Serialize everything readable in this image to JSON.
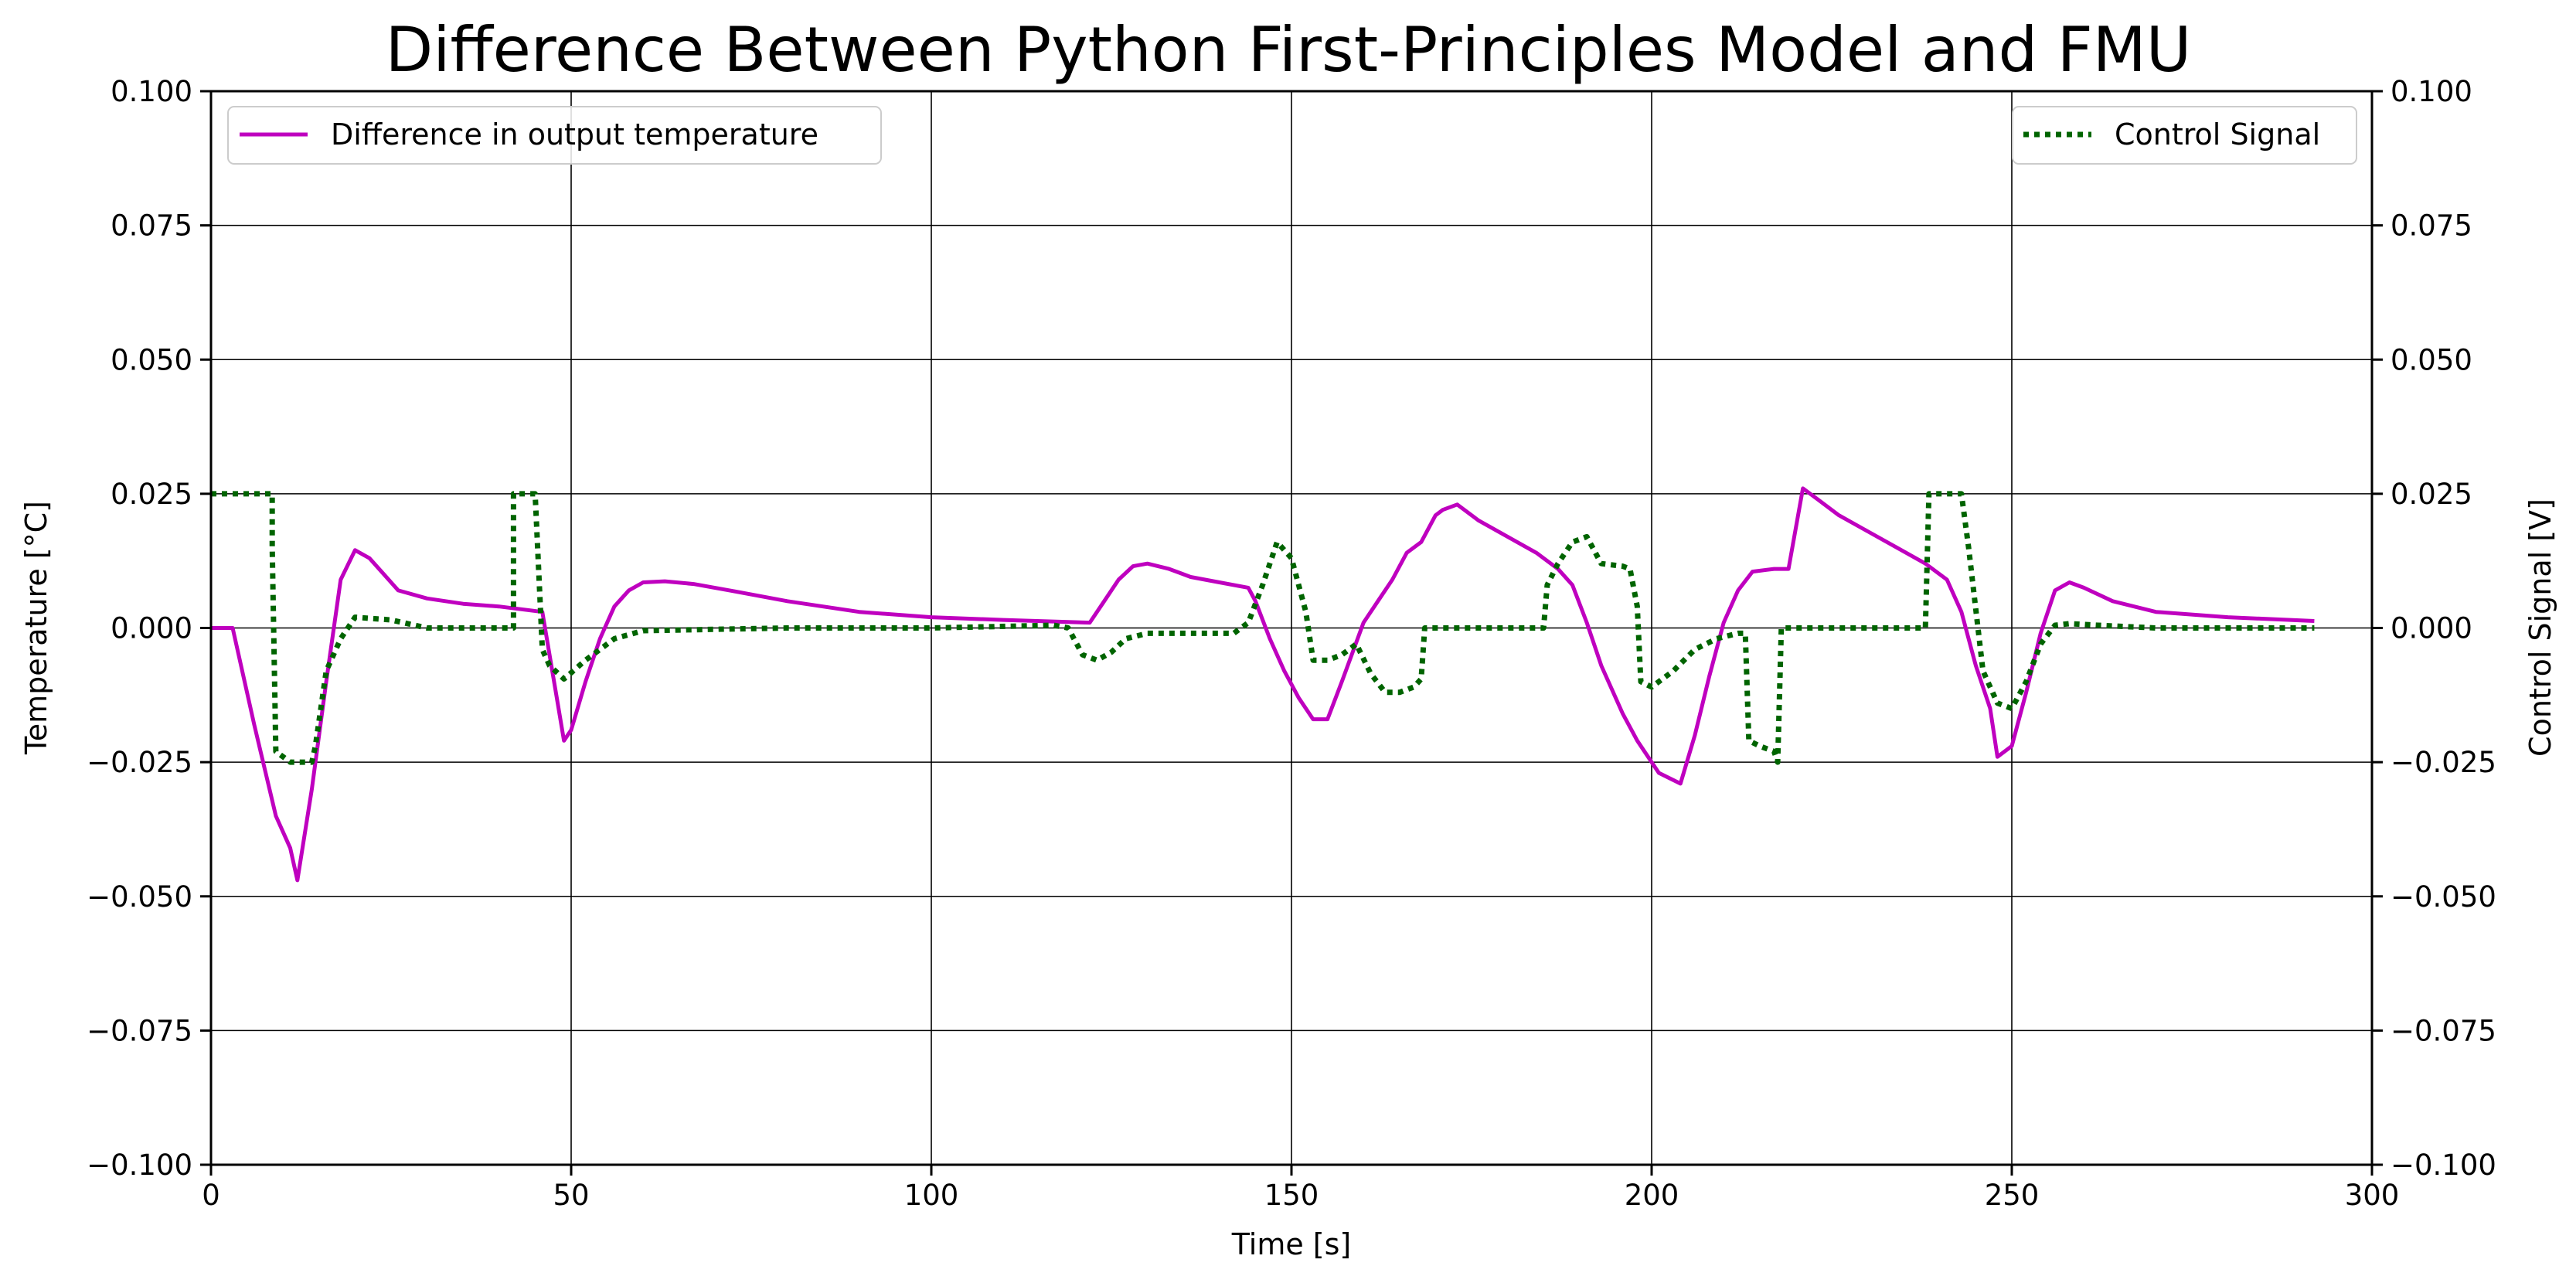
{
  "chart_data": {
    "type": "line",
    "title": "Difference Between Python First-Principles Model and FMU",
    "xlabel": "Time [s]",
    "ylabel_left": "Temperature [°C]",
    "ylabel_right": "Control Signal [V]",
    "xlim": [
      0,
      300
    ],
    "ylim_left": [
      -0.1,
      0.1
    ],
    "ylim_right": [
      -0.1,
      0.1
    ],
    "x_ticks": [
      0,
      50,
      100,
      150,
      200,
      250,
      300
    ],
    "x_tick_labels": [
      "0",
      "50",
      "100",
      "150",
      "200",
      "250",
      "300"
    ],
    "y_ticks": [
      -0.1,
      -0.075,
      -0.05,
      -0.025,
      0,
      0.025,
      0.05,
      0.075,
      0.1
    ],
    "y_tick_labels_left": [
      "−0.100",
      "−0.075",
      "−0.050",
      "−0.025",
      "0.000",
      "0.025",
      "0.050",
      "0.075",
      "0.100"
    ],
    "y_tick_labels_right": [
      "−0.100",
      "−0.075",
      "−0.050",
      "−0.025",
      "0.000",
      "0.025",
      "0.050",
      "0.075",
      "0.100"
    ],
    "grid": true,
    "legend_left": {
      "placement": "top-left",
      "label": "Difference in output temperature"
    },
    "legend_right": {
      "placement": "top-right",
      "label": "Control Signal"
    },
    "series": [
      {
        "name": "Difference in output temperature",
        "axis": "left",
        "color": "#bf00bf",
        "style": "solid",
        "x": [
          0,
          3,
          6,
          9,
          11,
          12,
          14,
          16,
          18,
          20,
          22,
          24,
          26,
          30,
          35,
          40,
          46,
          48,
          49,
          50,
          52,
          54,
          56,
          58,
          60,
          63,
          67,
          72,
          80,
          90,
          100,
          110,
          122,
          124,
          126,
          128,
          130,
          133,
          136,
          140,
          144,
          145,
          147,
          149,
          151,
          153,
          155,
          157,
          160,
          162,
          164,
          166,
          168,
          170,
          171,
          173,
          176,
          180,
          184,
          187,
          189,
          191,
          193,
          196,
          198,
          201,
          204,
          206,
          208,
          210,
          212,
          214,
          217,
          219,
          221,
          223,
          226,
          230,
          234,
          238,
          241,
          243,
          245,
          247,
          248,
          250,
          252,
          254,
          256,
          258,
          260,
          264,
          270,
          280,
          292
        ],
        "values": [
          0,
          0,
          -0.018,
          -0.035,
          -0.041,
          -0.047,
          -0.03,
          -0.01,
          0.009,
          0.0145,
          0.013,
          0.01,
          0.007,
          0.0055,
          0.0045,
          0.004,
          0.003,
          -0.013,
          -0.021,
          -0.019,
          -0.01,
          -0.002,
          0.004,
          0.007,
          0.0085,
          0.0087,
          0.0082,
          0.007,
          0.005,
          0.003,
          0.002,
          0.0015,
          0.001,
          0.005,
          0.009,
          0.0115,
          0.012,
          0.011,
          0.0095,
          0.0085,
          0.0075,
          0.005,
          -0.002,
          -0.008,
          -0.013,
          -0.017,
          -0.017,
          -0.01,
          0.001,
          0.005,
          0.009,
          0.014,
          0.016,
          0.021,
          0.022,
          0.023,
          0.02,
          0.017,
          0.014,
          0.011,
          0.008,
          0.001,
          -0.007,
          -0.016,
          -0.021,
          -0.027,
          -0.029,
          -0.02,
          -0.009,
          0.001,
          0.007,
          0.0105,
          0.011,
          0.011,
          0.026,
          0.024,
          0.021,
          0.018,
          0.015,
          0.012,
          0.009,
          0.003,
          -0.007,
          -0.015,
          -0.024,
          -0.022,
          -0.012,
          -0.001,
          0.007,
          0.0085,
          0.0075,
          0.005,
          0.003,
          0.002,
          0.0013
        ]
      },
      {
        "name": "Control Signal",
        "axis": "right",
        "color": "#006400",
        "style": "dotted",
        "x": [
          0,
          8.5,
          8.5,
          9,
          11,
          14,
          14.5,
          16,
          18,
          20,
          25,
          30,
          35,
          42,
          42,
          43,
          45,
          46,
          47,
          49,
          52,
          56,
          60,
          80,
          100,
          117,
          119,
          121,
          123,
          125,
          127,
          130,
          135,
          142,
          144,
          146,
          148,
          150,
          152,
          153,
          155,
          157,
          159,
          161,
          163,
          165,
          167,
          168,
          168.5,
          175,
          180,
          185,
          185.5,
          187,
          189,
          191,
          193,
          196,
          197,
          198,
          198.5,
          200,
          203,
          206,
          209,
          212,
          213,
          213.5,
          215,
          217,
          217.5,
          218,
          225,
          230,
          238,
          238.5,
          240,
          243,
          244,
          246,
          248,
          250,
          252,
          254,
          256,
          258,
          262,
          270,
          280,
          292
        ],
        "values": [
          0.025,
          0.025,
          0.015,
          -0.023,
          -0.025,
          -0.025,
          -0.022,
          -0.008,
          -0.002,
          0.002,
          0.0015,
          0,
          0,
          0,
          0.025,
          0.025,
          0.025,
          -0.004,
          -0.007,
          -0.0095,
          -0.006,
          -0.002,
          -0.0005,
          0,
          0,
          0.0005,
          0,
          -0.005,
          -0.006,
          -0.0045,
          -0.002,
          -0.001,
          -0.001,
          -0.001,
          0.001,
          0.008,
          0.016,
          0.013,
          0.003,
          -0.006,
          -0.006,
          -0.005,
          -0.003,
          -0.0085,
          -0.012,
          -0.012,
          -0.011,
          -0.0095,
          0,
          0,
          0,
          0,
          0.008,
          0.012,
          0.016,
          0.017,
          0.012,
          0.0115,
          0.011,
          0.004,
          -0.01,
          -0.011,
          -0.008,
          -0.004,
          -0.002,
          -0.001,
          -0.001,
          -0.021,
          -0.022,
          -0.023,
          -0.025,
          0,
          0,
          0,
          0,
          0.025,
          0.025,
          0.025,
          0.015,
          -0.008,
          -0.014,
          -0.015,
          -0.01,
          -0.003,
          0.0005,
          0.0008,
          0.0005,
          0,
          0,
          0
        ]
      }
    ]
  }
}
